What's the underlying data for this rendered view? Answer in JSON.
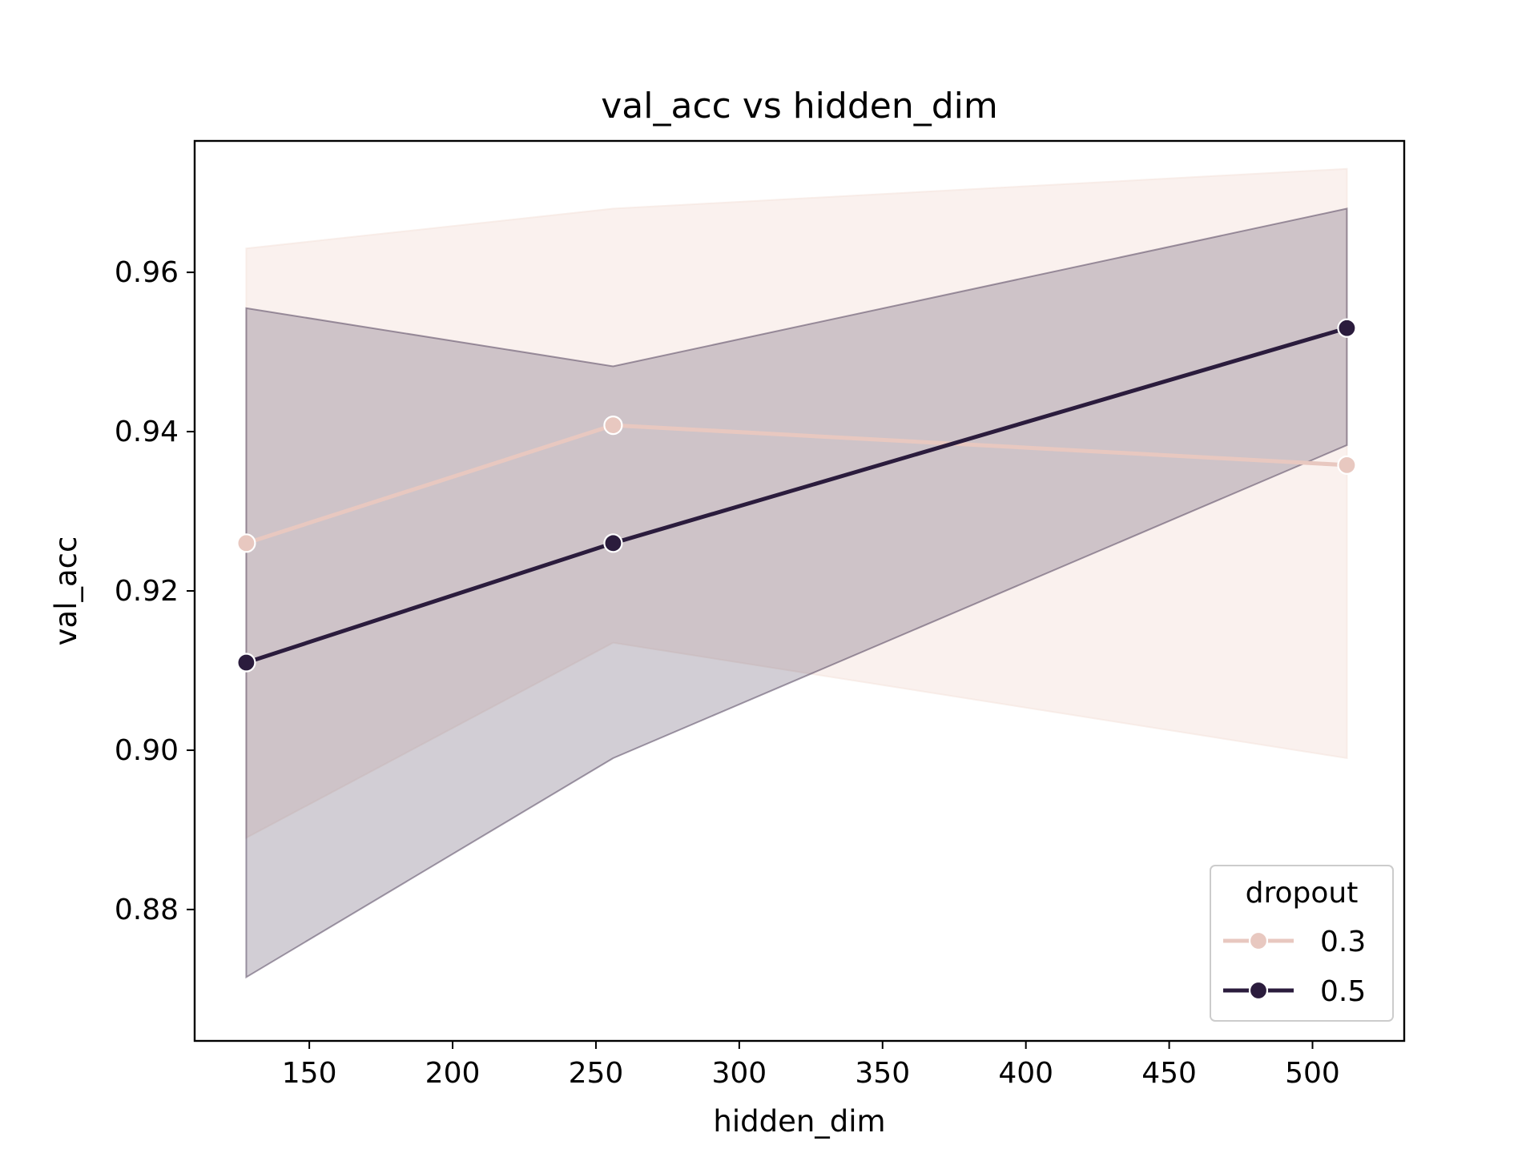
{
  "chart_data": {
    "type": "line",
    "title": "val_acc vs hidden_dim",
    "xlabel": "hidden_dim",
    "ylabel": "val_acc",
    "xlim": [
      110,
      532
    ],
    "ylim": [
      0.8635,
      0.9765
    ],
    "xticks": [
      150,
      200,
      250,
      300,
      350,
      400,
      450,
      500
    ],
    "yticks": [
      0.88,
      0.9,
      0.92,
      0.94,
      0.96
    ],
    "x": [
      128,
      256,
      512
    ],
    "grid": false,
    "legend": {
      "title": "dropout",
      "placement": "bottom-right"
    },
    "series": [
      {
        "name": "0.3",
        "color": "#e8c8c0",
        "band_color": "#f3e1da",
        "values": [
          0.926,
          0.9408,
          0.9358
        ],
        "ci_lower": [
          0.889,
          0.9135,
          0.899
        ],
        "ci_upper": [
          0.963,
          0.968,
          0.973
        ]
      },
      {
        "name": "0.5",
        "color": "#2b1c3d",
        "band_color": "#4a3a56",
        "values": [
          0.911,
          0.926,
          0.953
        ],
        "ci_lower": [
          0.8715,
          0.899,
          0.9383
        ],
        "ci_upper": [
          0.9555,
          0.9482,
          0.968
        ]
      }
    ]
  }
}
